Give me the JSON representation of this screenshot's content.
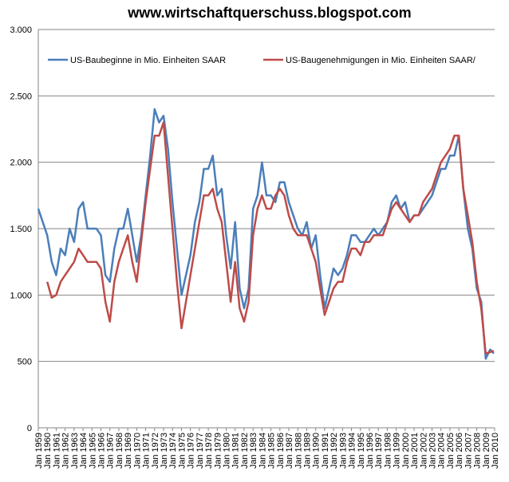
{
  "chart_data": {
    "type": "line",
    "title": "www.wirtschaftquerschuss.blogspot.com",
    "x": [
      1959,
      1959.5,
      1960,
      1960.5,
      1961,
      1961.5,
      1962,
      1962.5,
      1963,
      1963.5,
      1964,
      1964.5,
      1965,
      1965.5,
      1966,
      1966.5,
      1967,
      1967.5,
      1968,
      1968.5,
      1969,
      1969.5,
      1970,
      1970.5,
      1971,
      1971.5,
      1972,
      1972.5,
      1973,
      1973.5,
      1974,
      1974.5,
      1975,
      1975.5,
      1976,
      1976.5,
      1977,
      1977.5,
      1978,
      1978.5,
      1979,
      1979.5,
      1980,
      1980.5,
      1981,
      1981.5,
      1982,
      1982.5,
      1983,
      1983.5,
      1984,
      1984.5,
      1985,
      1985.5,
      1986,
      1986.5,
      1987,
      1987.5,
      1988,
      1988.5,
      1989,
      1989.5,
      1990,
      1990.5,
      1991,
      1991.5,
      1992,
      1992.5,
      1993,
      1993.5,
      1994,
      1994.5,
      1995,
      1995.5,
      1996,
      1996.5,
      1997,
      1997.5,
      1998,
      1998.5,
      1999,
      1999.5,
      2000,
      2000.5,
      2001,
      2001.5,
      2002,
      2002.5,
      2003,
      2003.5,
      2004,
      2004.5,
      2005,
      2005.5,
      2006,
      2006.5,
      2007,
      2007.5,
      2008,
      2008.5,
      2009,
      2009.5,
      2009.9
    ],
    "series": [
      {
        "name": "US-Baubeginne in Mio. Einheiten SAAR",
        "color": "#4a7ebb",
        "values": [
          1650,
          1550,
          1450,
          1250,
          1150,
          1350,
          1300,
          1500,
          1400,
          1650,
          1700,
          1500,
          1500,
          1500,
          1450,
          1150,
          1100,
          1350,
          1500,
          1500,
          1650,
          1450,
          1250,
          1450,
          1750,
          2050,
          2400,
          2300,
          2350,
          2100,
          1700,
          1350,
          1000,
          1150,
          1300,
          1550,
          1700,
          1950,
          1950,
          2050,
          1750,
          1800,
          1450,
          1200,
          1550,
          1050,
          900,
          1050,
          1650,
          1750,
          2000,
          1750,
          1750,
          1700,
          1850,
          1850,
          1700,
          1600,
          1500,
          1450,
          1550,
          1350,
          1450,
          1150,
          900,
          1050,
          1200,
          1150,
          1200,
          1300,
          1450,
          1450,
          1400,
          1400,
          1450,
          1500,
          1450,
          1500,
          1550,
          1700,
          1750,
          1650,
          1700,
          1550,
          1600,
          1600,
          1650,
          1700,
          1750,
          1850,
          1950,
          1950,
          2050,
          2050,
          2200,
          1800,
          1500,
          1350,
          1050,
          950,
          520,
          590,
          560
        ]
      },
      {
        "name": "US-Baugenehmigungen in Mio. Einheiten SAAR/",
        "color": "#be4b48",
        "values": [
          null,
          null,
          1100,
          980,
          1000,
          1100,
          1150,
          1200,
          1250,
          1350,
          1300,
          1250,
          1250,
          1250,
          1200,
          950,
          800,
          1100,
          1250,
          1350,
          1450,
          1250,
          1100,
          1400,
          1700,
          1950,
          2200,
          2200,
          2300,
          1900,
          1500,
          1100,
          750,
          950,
          1150,
          1350,
          1550,
          1750,
          1750,
          1800,
          1650,
          1550,
          1250,
          950,
          1250,
          900,
          800,
          950,
          1450,
          1650,
          1750,
          1650,
          1650,
          1750,
          1800,
          1750,
          1600,
          1500,
          1450,
          1450,
          1450,
          1350,
          1250,
          1050,
          850,
          950,
          1050,
          1100,
          1100,
          1250,
          1350,
          1350,
          1300,
          1400,
          1400,
          1450,
          1450,
          1450,
          1550,
          1650,
          1700,
          1650,
          1600,
          1550,
          1600,
          1600,
          1700,
          1750,
          1800,
          1900,
          2000,
          2050,
          2100,
          2200,
          2200,
          1800,
          1600,
          1400,
          1100,
          900,
          560,
          570,
          580
        ]
      }
    ],
    "ylim": [
      0,
      3000
    ],
    "yticks": [
      0,
      {
        "value": 500,
        "label": "500"
      },
      {
        "value": 1000,
        "label": "1.000"
      },
      {
        "value": 1500,
        "label": "1.500"
      },
      {
        "value": 2000,
        "label": "2.000"
      },
      {
        "value": 2500,
        "label": "2.500"
      },
      {
        "value": 3000,
        "label": "3.000"
      }
    ],
    "xlim": [
      1959,
      2010
    ],
    "xticks": [
      {
        "value": 1959,
        "label": "Jan 1959"
      },
      {
        "value": 1960,
        "label": "Jan 1960"
      },
      {
        "value": 1961,
        "label": "Jan 1961"
      },
      {
        "value": 1962,
        "label": "Jan 1962"
      },
      {
        "value": 1963,
        "label": "Jan 1963"
      },
      {
        "value": 1964,
        "label": "Jan 1964"
      },
      {
        "value": 1965,
        "label": "Jan 1965"
      },
      {
        "value": 1966,
        "label": "Jan 1966"
      },
      {
        "value": 1967,
        "label": "Jan 1967"
      },
      {
        "value": 1968,
        "label": "Jan 1968"
      },
      {
        "value": 1969,
        "label": "Jan 1969"
      },
      {
        "value": 1970,
        "label": "Jan 1970"
      },
      {
        "value": 1971,
        "label": "Jan 1971"
      },
      {
        "value": 1972,
        "label": "Jan 1972"
      },
      {
        "value": 1973,
        "label": "Jan 1973"
      },
      {
        "value": 1974,
        "label": "Jan 1974"
      },
      {
        "value": 1975,
        "label": "Jan 1975"
      },
      {
        "value": 1976,
        "label": "Jan 1976"
      },
      {
        "value": 1977,
        "label": "Jan 1977"
      },
      {
        "value": 1978,
        "label": "Jan 1978"
      },
      {
        "value": 1979,
        "label": "Jan 1979"
      },
      {
        "value": 1980,
        "label": "Jan 1980"
      },
      {
        "value": 1981,
        "label": "Jan 1981"
      },
      {
        "value": 1982,
        "label": "Jan 1982"
      },
      {
        "value": 1983,
        "label": "Jan 1983"
      },
      {
        "value": 1984,
        "label": "Jan 1984"
      },
      {
        "value": 1985,
        "label": "Jan 1985"
      },
      {
        "value": 1986,
        "label": "Jan 1986"
      },
      {
        "value": 1987,
        "label": "Jan 1987"
      },
      {
        "value": 1988,
        "label": "Jan 1988"
      },
      {
        "value": 1989,
        "label": "Jan 1989"
      },
      {
        "value": 1990,
        "label": "Jan 1990"
      },
      {
        "value": 1991,
        "label": "Jan 1991"
      },
      {
        "value": 1992,
        "label": "Jan 1992"
      },
      {
        "value": 1993,
        "label": "Jan 1993"
      },
      {
        "value": 1994,
        "label": "Jan 1994"
      },
      {
        "value": 1995,
        "label": "Jan 1995"
      },
      {
        "value": 1996,
        "label": "Jan 1996"
      },
      {
        "value": 1997,
        "label": "Jan 1997"
      },
      {
        "value": 1998,
        "label": "Jan 1998"
      },
      {
        "value": 1999,
        "label": "Jan 1999"
      },
      {
        "value": 2000,
        "label": "Jan 2000"
      },
      {
        "value": 2001,
        "label": "Jan 2001"
      },
      {
        "value": 2002,
        "label": "Jan 2002"
      },
      {
        "value": 2003,
        "label": "Jan 2003"
      },
      {
        "value": 2004,
        "label": "Jan 2004"
      },
      {
        "value": 2005,
        "label": "Jan 2005"
      },
      {
        "value": 2006,
        "label": "Jan 2006"
      },
      {
        "value": 2007,
        "label": "Jan 2007"
      },
      {
        "value": 2008,
        "label": "Jan 2008"
      },
      {
        "value": 2009,
        "label": "Jan 2009"
      },
      {
        "value": 2010,
        "label": "Jan 2010"
      }
    ],
    "grid": true
  }
}
